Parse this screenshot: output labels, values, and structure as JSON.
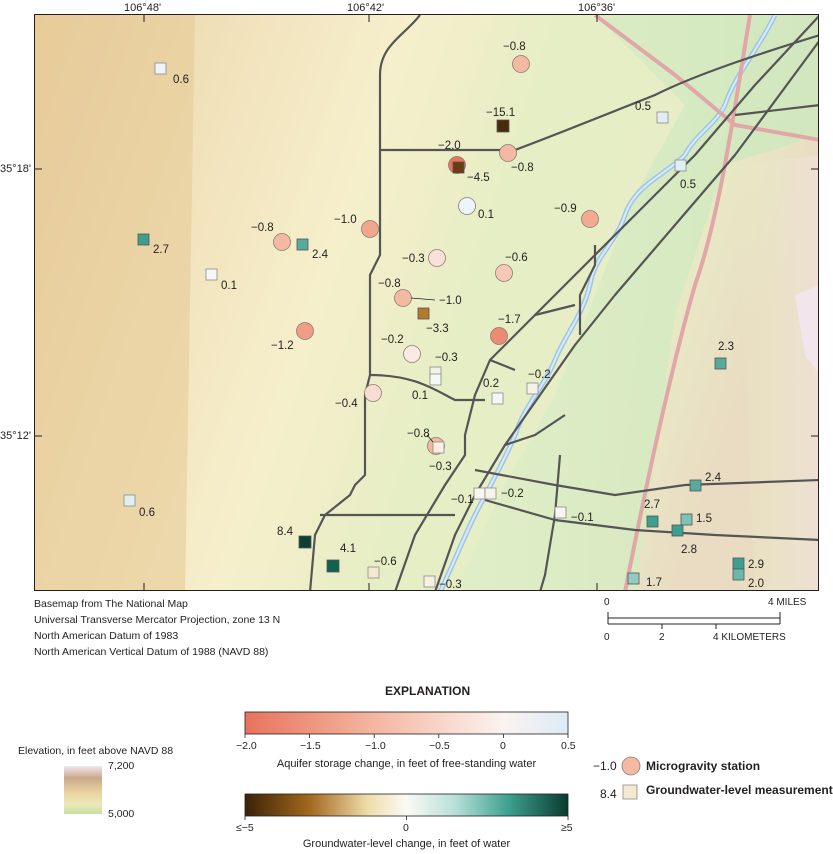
{
  "map": {
    "top_ticks": [
      "106°48'",
      "106°42'",
      "106°36'"
    ],
    "left_ticks": [
      "35°18'",
      "35°12'"
    ],
    "credits": [
      "Basemap from The National Map",
      "Universal Transverse Mercator Projection, zone 13 N",
      "North American Datum of 1983",
      "North American Vertical Datum of 1988 (NAVD 88)"
    ]
  },
  "microgravity_stations": [
    {
      "value": "−0.8",
      "change": -0.8
    },
    {
      "value": "−2.0",
      "change": -2.0
    },
    {
      "value": "−0.8",
      "change": -0.8
    },
    {
      "value": "0.1",
      "change": 0.1
    },
    {
      "value": "−0.9",
      "change": -0.9
    },
    {
      "value": "−1.0",
      "change": -1.0
    },
    {
      "value": "−0.8",
      "change": -0.8
    },
    {
      "value": "−0.3",
      "change": -0.3
    },
    {
      "value": "−0.6",
      "change": -0.6
    },
    {
      "value": "−0.8",
      "change": -0.8
    },
    {
      "value": "−1.0",
      "change": -1.0
    },
    {
      "value": "−1.7",
      "change": -1.7
    },
    {
      "value": "−1.2",
      "change": -1.2
    },
    {
      "value": "−0.2",
      "change": -0.2
    },
    {
      "value": "−0.4",
      "change": -0.4
    },
    {
      "value": "−0.8",
      "change": -0.8
    }
  ],
  "groundwater_wells": [
    {
      "value": "0.6",
      "change": 0.6
    },
    {
      "value": "−15.1",
      "change": -15.1
    },
    {
      "value": "0.5",
      "change": 0.5
    },
    {
      "value": "0.5",
      "change": 0.5
    },
    {
      "value": "−4.5",
      "change": -4.5
    },
    {
      "value": "2.7",
      "change": 2.7
    },
    {
      "value": "2.4",
      "change": 2.4
    },
    {
      "value": "0.1",
      "change": 0.1
    },
    {
      "value": "−3.3",
      "change": -3.3
    },
    {
      "value": "−0.3",
      "change": -0.3
    },
    {
      "value": "0.1",
      "change": 0.1
    },
    {
      "value": "0.2",
      "change": 0.2
    },
    {
      "value": "−0.2",
      "change": -0.2
    },
    {
      "value": "2.3",
      "change": 2.3
    },
    {
      "value": "−0.3",
      "change": -0.3
    },
    {
      "value": "−0.1",
      "change": -0.1
    },
    {
      "value": "−0.2",
      "change": -0.2
    },
    {
      "value": "−0.1",
      "change": -0.1
    },
    {
      "value": "2.4",
      "change": 2.4
    },
    {
      "value": "2.7",
      "change": 2.7
    },
    {
      "value": "1.5",
      "change": 1.5
    },
    {
      "value": "2.8",
      "change": 2.8
    },
    {
      "value": "0.6",
      "change": 0.6
    },
    {
      "value": "8.4",
      "change": 8.4
    },
    {
      "value": "4.1",
      "change": 4.1
    },
    {
      "value": "−0.6",
      "change": -0.6
    },
    {
      "value": "−0.3",
      "change": -0.3
    },
    {
      "value": "2.9",
      "change": 2.9
    },
    {
      "value": "2.0",
      "change": 2.0
    },
    {
      "value": "1.7",
      "change": 1.7
    }
  ],
  "scale_bar": {
    "miles_labels": [
      "0",
      "4 MILES"
    ],
    "km_labels": [
      "0",
      "2",
      "4 KILOMETERS"
    ]
  },
  "explanation": {
    "title": "EXPLANATION",
    "aquifer_ticks": [
      "−2.0",
      "−1.5",
      "−1.0",
      "−0.5",
      "0",
      "0.5"
    ],
    "aquifer_caption": "Aquifer storage change, in feet of free-standing water",
    "gw_ticks": [
      "≤−5",
      "0",
      "≥5"
    ],
    "gw_caption": "Groundwater-level change, in feet of water",
    "elevation_title": "Elevation, in feet above NAVD 88",
    "elevation_max": "7,200",
    "elevation_min": "5,000",
    "micro_example_value": "−1.0",
    "micro_label": "Microgravity station",
    "well_example_value": "8.4",
    "well_label": "Groundwater-level measurement"
  },
  "colors": {
    "negative": "#e8735c",
    "positive_micro": "#cfe3f5",
    "gw_negative": "#4a2a0c",
    "gw_positive": "#0c3f35",
    "road": "#4d4d4d",
    "highway": "#e1a7a8",
    "river": "#9ec4e8"
  }
}
